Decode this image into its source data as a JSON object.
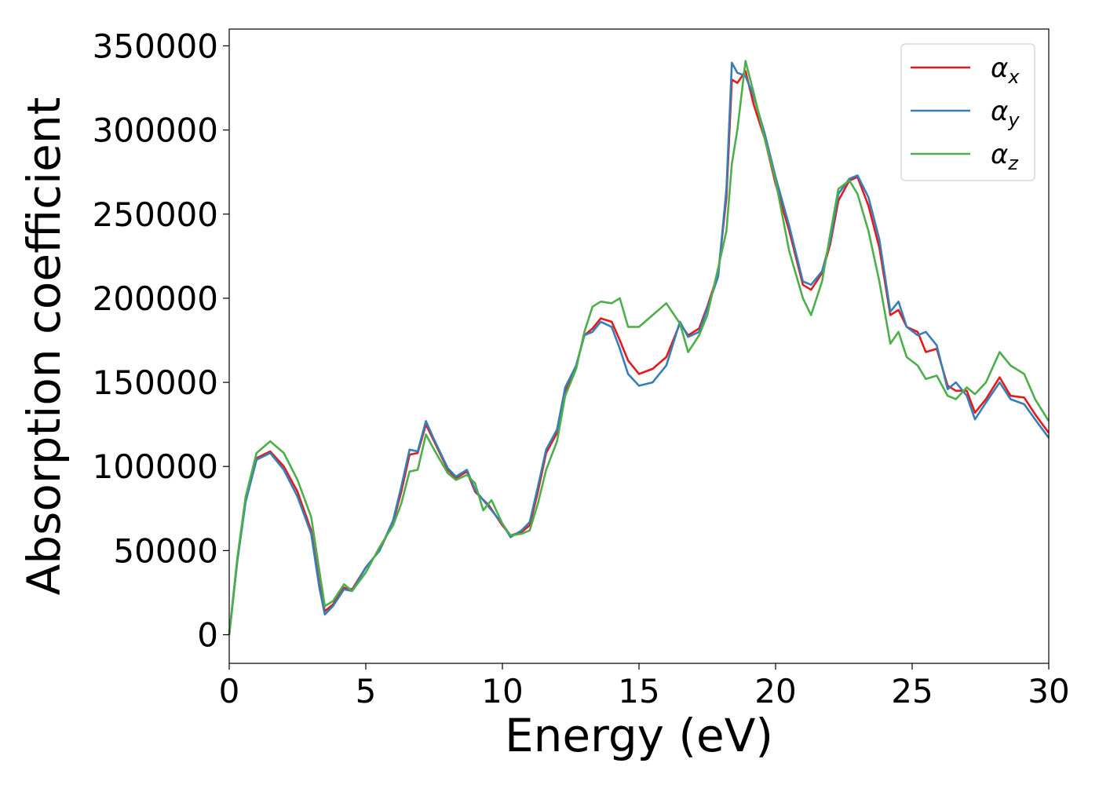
{
  "chart_data": {
    "type": "line",
    "title": "",
    "xlabel": "Energy (eV)",
    "ylabel": "Absorption coefficient",
    "xlim": [
      0,
      30
    ],
    "ylim": [
      -17000,
      360000
    ],
    "xticks": [
      0,
      5,
      10,
      15,
      20,
      25,
      30
    ],
    "yticks": [
      0,
      50000,
      100000,
      150000,
      200000,
      250000,
      300000,
      350000
    ],
    "xtick_labels": [
      "0",
      "5",
      "10",
      "15",
      "20",
      "25",
      "30"
    ],
    "ytick_labels": [
      "0",
      "50000",
      "100000",
      "150000",
      "200000",
      "250000",
      "300000",
      "350000"
    ],
    "grid": false,
    "legend_position": "top-right",
    "series": [
      {
        "name": "αx",
        "legend_base": "α",
        "legend_sub": "x",
        "color": "#e41a1c",
        "points": [
          [
            0,
            0
          ],
          [
            0.3,
            45000
          ],
          [
            0.6,
            80000
          ],
          [
            1.0,
            105000
          ],
          [
            1.5,
            109000
          ],
          [
            2.0,
            100000
          ],
          [
            2.5,
            85000
          ],
          [
            3.0,
            62000
          ],
          [
            3.3,
            30000
          ],
          [
            3.5,
            14000
          ],
          [
            3.8,
            18000
          ],
          [
            4.2,
            28000
          ],
          [
            4.5,
            27000
          ],
          [
            5.0,
            40000
          ],
          [
            5.5,
            50000
          ],
          [
            6.0,
            67000
          ],
          [
            6.3,
            85000
          ],
          [
            6.6,
            107000
          ],
          [
            6.9,
            108000
          ],
          [
            7.2,
            125000
          ],
          [
            7.5,
            115000
          ],
          [
            8.0,
            98000
          ],
          [
            8.3,
            93000
          ],
          [
            8.7,
            97000
          ],
          [
            9.0,
            85000
          ],
          [
            9.5,
            77000
          ],
          [
            10.0,
            65000
          ],
          [
            10.3,
            59000
          ],
          [
            10.7,
            61000
          ],
          [
            11.0,
            65000
          ],
          [
            11.3,
            85000
          ],
          [
            11.6,
            108000
          ],
          [
            12.0,
            120000
          ],
          [
            12.3,
            145000
          ],
          [
            12.7,
            160000
          ],
          [
            13.0,
            178000
          ],
          [
            13.3,
            182000
          ],
          [
            13.6,
            188000
          ],
          [
            14.0,
            186000
          ],
          [
            14.3,
            175000
          ],
          [
            14.6,
            163000
          ],
          [
            15.0,
            155000
          ],
          [
            15.5,
            158000
          ],
          [
            16.0,
            165000
          ],
          [
            16.5,
            185000
          ],
          [
            16.8,
            178000
          ],
          [
            17.2,
            182000
          ],
          [
            17.5,
            195000
          ],
          [
            17.9,
            215000
          ],
          [
            18.2,
            260000
          ],
          [
            18.4,
            330000
          ],
          [
            18.6,
            328000
          ],
          [
            18.9,
            335000
          ],
          [
            19.2,
            315000
          ],
          [
            19.6,
            295000
          ],
          [
            20.0,
            268000
          ],
          [
            20.5,
            240000
          ],
          [
            21.0,
            208000
          ],
          [
            21.3,
            205000
          ],
          [
            21.7,
            215000
          ],
          [
            22.0,
            232000
          ],
          [
            22.3,
            258000
          ],
          [
            22.7,
            270000
          ],
          [
            23.0,
            272000
          ],
          [
            23.4,
            255000
          ],
          [
            23.8,
            230000
          ],
          [
            24.2,
            190000
          ],
          [
            24.5,
            193000
          ],
          [
            24.8,
            183000
          ],
          [
            25.2,
            180000
          ],
          [
            25.5,
            168000
          ],
          [
            25.9,
            170000
          ],
          [
            26.3,
            148000
          ],
          [
            26.6,
            145000
          ],
          [
            27.0,
            145000
          ],
          [
            27.3,
            132000
          ],
          [
            27.7,
            140000
          ],
          [
            28.2,
            153000
          ],
          [
            28.6,
            142000
          ],
          [
            29.1,
            141000
          ],
          [
            29.5,
            131000
          ],
          [
            30.0,
            120000
          ]
        ]
      },
      {
        "name": "αy",
        "legend_base": "α",
        "legend_sub": "y",
        "color": "#377eb8",
        "points": [
          [
            0,
            0
          ],
          [
            0.3,
            44000
          ],
          [
            0.6,
            79000
          ],
          [
            1.0,
            104000
          ],
          [
            1.5,
            108000
          ],
          [
            2.0,
            98000
          ],
          [
            2.5,
            82000
          ],
          [
            3.0,
            60000
          ],
          [
            3.3,
            28000
          ],
          [
            3.5,
            12000
          ],
          [
            3.8,
            17000
          ],
          [
            4.2,
            27000
          ],
          [
            4.5,
            26000
          ],
          [
            5.0,
            40000
          ],
          [
            5.5,
            50000
          ],
          [
            6.0,
            68000
          ],
          [
            6.3,
            88000
          ],
          [
            6.6,
            110000
          ],
          [
            6.9,
            109000
          ],
          [
            7.2,
            127000
          ],
          [
            7.5,
            116000
          ],
          [
            8.0,
            99000
          ],
          [
            8.3,
            94000
          ],
          [
            8.7,
            98000
          ],
          [
            9.0,
            86000
          ],
          [
            9.5,
            76000
          ],
          [
            10.0,
            66000
          ],
          [
            10.3,
            58000
          ],
          [
            10.7,
            62000
          ],
          [
            11.0,
            67000
          ],
          [
            11.3,
            88000
          ],
          [
            11.6,
            110000
          ],
          [
            12.0,
            122000
          ],
          [
            12.3,
            147000
          ],
          [
            12.7,
            160000
          ],
          [
            13.0,
            178000
          ],
          [
            13.3,
            180000
          ],
          [
            13.6,
            186000
          ],
          [
            14.0,
            183000
          ],
          [
            14.3,
            170000
          ],
          [
            14.6,
            155000
          ],
          [
            15.0,
            148000
          ],
          [
            15.5,
            150000
          ],
          [
            16.0,
            160000
          ],
          [
            16.5,
            186000
          ],
          [
            16.8,
            177000
          ],
          [
            17.2,
            180000
          ],
          [
            17.5,
            194000
          ],
          [
            17.9,
            213000
          ],
          [
            18.2,
            265000
          ],
          [
            18.4,
            340000
          ],
          [
            18.6,
            334000
          ],
          [
            18.9,
            332000
          ],
          [
            19.2,
            320000
          ],
          [
            19.6,
            298000
          ],
          [
            20.0,
            272000
          ],
          [
            20.5,
            243000
          ],
          [
            21.0,
            210000
          ],
          [
            21.3,
            208000
          ],
          [
            21.7,
            216000
          ],
          [
            22.0,
            234000
          ],
          [
            22.3,
            262000
          ],
          [
            22.7,
            271000
          ],
          [
            23.0,
            273000
          ],
          [
            23.4,
            260000
          ],
          [
            23.8,
            235000
          ],
          [
            24.2,
            192000
          ],
          [
            24.5,
            198000
          ],
          [
            24.8,
            183000
          ],
          [
            25.2,
            178000
          ],
          [
            25.5,
            180000
          ],
          [
            25.9,
            172000
          ],
          [
            26.3,
            146000
          ],
          [
            26.6,
            150000
          ],
          [
            27.0,
            142000
          ],
          [
            27.3,
            128000
          ],
          [
            27.7,
            138000
          ],
          [
            28.2,
            150000
          ],
          [
            28.6,
            140000
          ],
          [
            29.1,
            137000
          ],
          [
            29.5,
            128000
          ],
          [
            30.0,
            117000
          ]
        ]
      },
      {
        "name": "αz",
        "legend_base": "α",
        "legend_sub": "z",
        "color": "#4daf4a",
        "points": [
          [
            0,
            0
          ],
          [
            0.3,
            46000
          ],
          [
            0.6,
            82000
          ],
          [
            1.0,
            108000
          ],
          [
            1.5,
            115000
          ],
          [
            2.0,
            108000
          ],
          [
            2.5,
            92000
          ],
          [
            3.0,
            70000
          ],
          [
            3.3,
            38000
          ],
          [
            3.5,
            17000
          ],
          [
            3.8,
            20000
          ],
          [
            4.2,
            30000
          ],
          [
            4.5,
            26000
          ],
          [
            5.0,
            37000
          ],
          [
            5.5,
            52000
          ],
          [
            6.0,
            65000
          ],
          [
            6.3,
            78000
          ],
          [
            6.6,
            97000
          ],
          [
            6.9,
            98000
          ],
          [
            7.2,
            119000
          ],
          [
            7.5,
            110000
          ],
          [
            8.0,
            96000
          ],
          [
            8.3,
            92000
          ],
          [
            8.7,
            95000
          ],
          [
            9.0,
            90000
          ],
          [
            9.3,
            74000
          ],
          [
            9.6,
            80000
          ],
          [
            10.0,
            66000
          ],
          [
            10.3,
            59000
          ],
          [
            10.7,
            60000
          ],
          [
            11.0,
            62000
          ],
          [
            11.3,
            78000
          ],
          [
            11.6,
            98000
          ],
          [
            12.0,
            115000
          ],
          [
            12.3,
            142000
          ],
          [
            12.7,
            158000
          ],
          [
            13.0,
            180000
          ],
          [
            13.3,
            195000
          ],
          [
            13.6,
            198000
          ],
          [
            14.0,
            197000
          ],
          [
            14.3,
            200000
          ],
          [
            14.6,
            183000
          ],
          [
            15.0,
            183000
          ],
          [
            15.5,
            190000
          ],
          [
            16.0,
            197000
          ],
          [
            16.5,
            185000
          ],
          [
            16.8,
            168000
          ],
          [
            17.2,
            178000
          ],
          [
            17.5,
            190000
          ],
          [
            17.9,
            218000
          ],
          [
            18.2,
            240000
          ],
          [
            18.4,
            280000
          ],
          [
            18.6,
            300000
          ],
          [
            18.9,
            341000
          ],
          [
            19.2,
            322000
          ],
          [
            19.6,
            295000
          ],
          [
            20.0,
            270000
          ],
          [
            20.5,
            228000
          ],
          [
            21.0,
            200000
          ],
          [
            21.3,
            190000
          ],
          [
            21.7,
            210000
          ],
          [
            22.0,
            238000
          ],
          [
            22.3,
            265000
          ],
          [
            22.7,
            270000
          ],
          [
            23.0,
            262000
          ],
          [
            23.4,
            240000
          ],
          [
            23.8,
            210000
          ],
          [
            24.2,
            173000
          ],
          [
            24.5,
            180000
          ],
          [
            24.8,
            165000
          ],
          [
            25.2,
            160000
          ],
          [
            25.5,
            152000
          ],
          [
            25.9,
            154000
          ],
          [
            26.3,
            142000
          ],
          [
            26.6,
            140000
          ],
          [
            27.0,
            147000
          ],
          [
            27.3,
            143000
          ],
          [
            27.7,
            150000
          ],
          [
            28.2,
            168000
          ],
          [
            28.6,
            160000
          ],
          [
            29.1,
            155000
          ],
          [
            29.5,
            140000
          ],
          [
            30.0,
            127000
          ]
        ]
      }
    ]
  }
}
